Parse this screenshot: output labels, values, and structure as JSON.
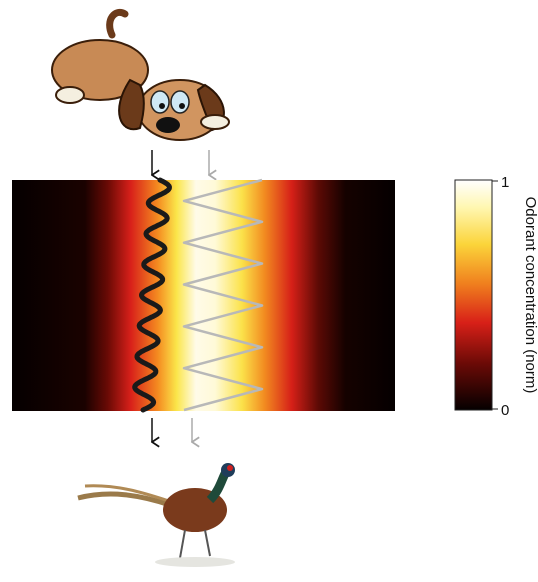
{
  "colorbar": {
    "label": "Odorant concentration (norm)",
    "max_label": "1",
    "min_label": "0"
  }
}
